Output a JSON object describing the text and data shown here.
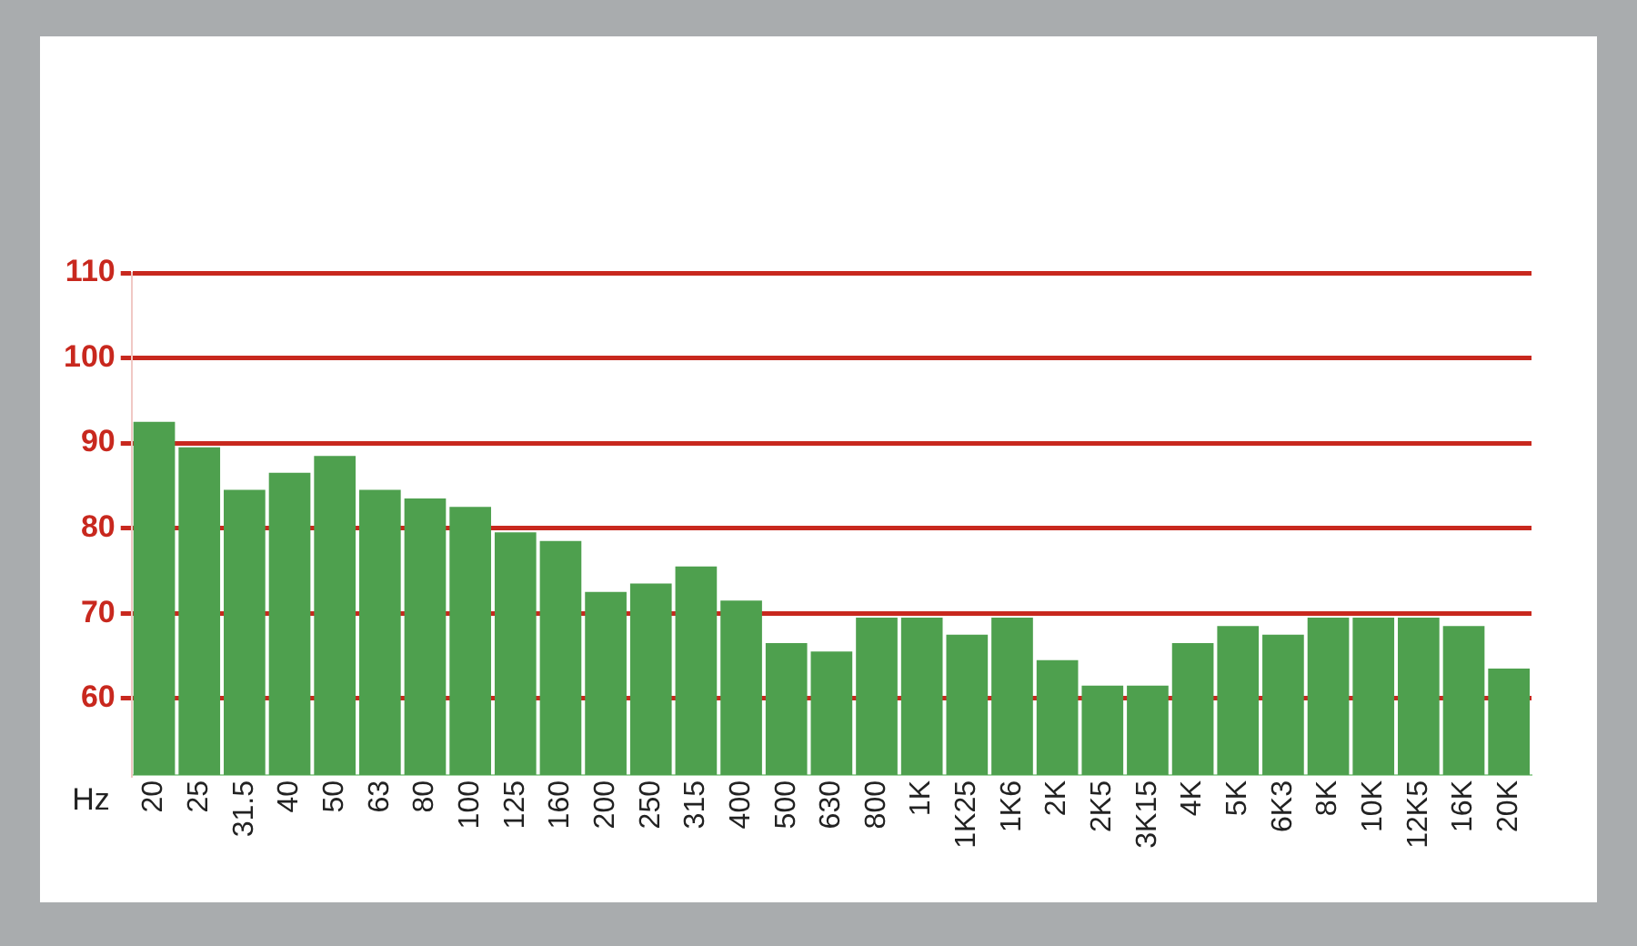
{
  "chart_data": {
    "type": "bar",
    "xlabel": "Hz",
    "categories": [
      "20",
      "25",
      "31.5",
      "40",
      "50",
      "63",
      "80",
      "100",
      "125",
      "160",
      "200",
      "250",
      "315",
      "400",
      "500",
      "630",
      "800",
      "1K",
      "1K25",
      "1K6",
      "2K",
      "2K5",
      "3K15",
      "4K",
      "5K",
      "6K3",
      "8K",
      "10K",
      "12K5",
      "16K",
      "20K"
    ],
    "values": [
      92.5,
      89.5,
      84.5,
      86.5,
      88.5,
      84.5,
      83.5,
      82.5,
      79.5,
      78.5,
      72.5,
      73.5,
      75.5,
      71.5,
      66.5,
      65.5,
      69.5,
      69.5,
      67.5,
      69.5,
      64.5,
      61.5,
      61.5,
      66.5,
      68.5,
      67.5,
      69.5,
      69.5,
      69.5,
      68.5,
      63.5
    ],
    "color": "#4ea04e",
    "ylim": [
      51,
      110
    ],
    "yticks": [
      60,
      70,
      80,
      90,
      100,
      110
    ],
    "grid": "y"
  }
}
